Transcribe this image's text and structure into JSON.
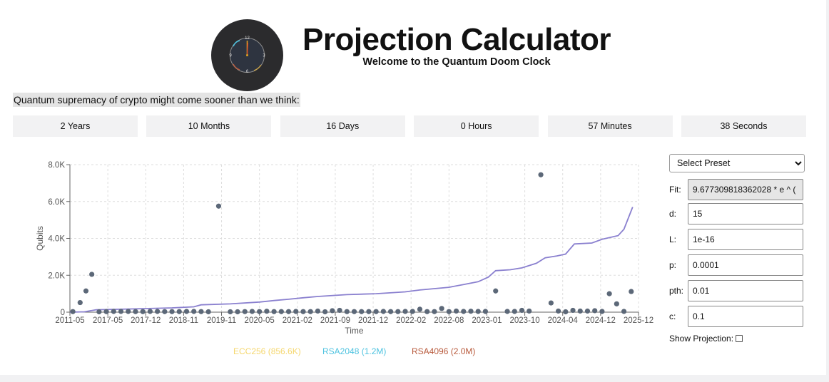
{
  "header": {
    "title": "Projection Calculator",
    "subtitle": "Welcome to the Quantum Doom Clock",
    "tagline": "Quantum supremacy of crypto might come sooner than we think:"
  },
  "clock_face": {
    "n12": "12",
    "n3": "3",
    "n6": "6",
    "n9": "9"
  },
  "countdown": [
    {
      "label": "2 Years"
    },
    {
      "label": "10 Months"
    },
    {
      "label": "16 Days"
    },
    {
      "label": "0 Hours"
    },
    {
      "label": "57 Minutes"
    },
    {
      "label": "38 Seconds"
    }
  ],
  "controls": {
    "preset_label": "Select Preset",
    "fit_label": "Fit:",
    "fit_value": "9.677309818362028 * e ^ (",
    "d_label": "d:",
    "d_value": "15",
    "L_label": "L:",
    "L_value": "1e-16",
    "p_label": "p:",
    "p_value": "0.0001",
    "pth_label": "pth:",
    "pth_value": "0.01",
    "c_label": "c:",
    "c_value": "0.1",
    "show_projection_label": "Show Projection:"
  },
  "chart_data": {
    "type": "scatter",
    "xlabel": "Time",
    "ylabel": "Qubits",
    "x_tick_labels": [
      "2011-05",
      "2017-05",
      "2017-12",
      "2018-11",
      "2019-11",
      "2020-05",
      "2021-02",
      "2021-09",
      "2021-12",
      "2022-02",
      "2022-08",
      "2023-01",
      "2023-10",
      "2024-04",
      "2024-12",
      "2025-12"
    ],
    "y_tick_labels": [
      "0",
      "2.0K",
      "4.0K",
      "6.0K",
      "8.0K"
    ],
    "ylim": [
      0,
      8000
    ],
    "grid": true,
    "legend": [
      {
        "name": "ECC256 (856.6K)",
        "color": "#f5d76e"
      },
      {
        "name": "RSA2048 (1.2M)",
        "color": "#4fc3e0"
      },
      {
        "name": "RSA4096 (2.0M)",
        "color": "#b85a3c"
      }
    ],
    "points_color": "#5c6878",
    "trend_color": "#8a80cf",
    "points": [
      {
        "x": 0.2,
        "y": 30
      },
      {
        "x": 0.7,
        "y": 520
      },
      {
        "x": 1.1,
        "y": 1150
      },
      {
        "x": 1.5,
        "y": 2050
      },
      {
        "x": 2.0,
        "y": 20
      },
      {
        "x": 2.5,
        "y": 30
      },
      {
        "x": 3.0,
        "y": 40
      },
      {
        "x": 3.5,
        "y": 40
      },
      {
        "x": 4.0,
        "y": 40
      },
      {
        "x": 4.5,
        "y": 30
      },
      {
        "x": 5.0,
        "y": 30
      },
      {
        "x": 5.5,
        "y": 40
      },
      {
        "x": 6.0,
        "y": 40
      },
      {
        "x": 6.5,
        "y": 30
      },
      {
        "x": 7.0,
        "y": 30
      },
      {
        "x": 7.5,
        "y": 30
      },
      {
        "x": 8.0,
        "y": 40
      },
      {
        "x": 8.5,
        "y": 40
      },
      {
        "x": 9.0,
        "y": 30
      },
      {
        "x": 9.5,
        "y": 20
      },
      {
        "x": 10.2,
        "y": 5750
      },
      {
        "x": 11.0,
        "y": 20
      },
      {
        "x": 11.5,
        "y": 20
      },
      {
        "x": 12.0,
        "y": 30
      },
      {
        "x": 12.5,
        "y": 40
      },
      {
        "x": 13.0,
        "y": 30
      },
      {
        "x": 13.5,
        "y": 50
      },
      {
        "x": 14.0,
        "y": 30
      },
      {
        "x": 14.5,
        "y": 30
      },
      {
        "x": 15.0,
        "y": 30
      },
      {
        "x": 15.5,
        "y": 40
      },
      {
        "x": 16.0,
        "y": 30
      },
      {
        "x": 16.5,
        "y": 30
      },
      {
        "x": 17.0,
        "y": 60
      },
      {
        "x": 17.5,
        "y": 20
      },
      {
        "x": 18.0,
        "y": 80
      },
      {
        "x": 18.5,
        "y": 100
      },
      {
        "x": 19.0,
        "y": 30
      },
      {
        "x": 19.5,
        "y": 30
      },
      {
        "x": 20.0,
        "y": 30
      },
      {
        "x": 20.5,
        "y": 30
      },
      {
        "x": 21.0,
        "y": 30
      },
      {
        "x": 21.5,
        "y": 40
      },
      {
        "x": 22.0,
        "y": 30
      },
      {
        "x": 22.5,
        "y": 30
      },
      {
        "x": 23.0,
        "y": 40
      },
      {
        "x": 23.5,
        "y": 40
      },
      {
        "x": 24.0,
        "y": 160
      },
      {
        "x": 24.5,
        "y": 30
      },
      {
        "x": 25.0,
        "y": 30
      },
      {
        "x": 25.5,
        "y": 200
      },
      {
        "x": 26.0,
        "y": 30
      },
      {
        "x": 26.5,
        "y": 60
      },
      {
        "x": 27.0,
        "y": 40
      },
      {
        "x": 27.5,
        "y": 50
      },
      {
        "x": 28.0,
        "y": 40
      },
      {
        "x": 28.5,
        "y": 40
      },
      {
        "x": 29.2,
        "y": 1150
      },
      {
        "x": 30.0,
        "y": 40
      },
      {
        "x": 30.5,
        "y": 40
      },
      {
        "x": 31.0,
        "y": 100
      },
      {
        "x": 31.5,
        "y": 60
      },
      {
        "x": 32.3,
        "y": 7450
      },
      {
        "x": 33.0,
        "y": 500
      },
      {
        "x": 33.5,
        "y": 60
      },
      {
        "x": 34.0,
        "y": 20
      },
      {
        "x": 34.5,
        "y": 100
      },
      {
        "x": 35.0,
        "y": 60
      },
      {
        "x": 35.5,
        "y": 60
      },
      {
        "x": 36.0,
        "y": 80
      },
      {
        "x": 36.5,
        "y": 40
      },
      {
        "x": 37.0,
        "y": 1000
      },
      {
        "x": 37.5,
        "y": 450
      },
      {
        "x": 38.0,
        "y": 40
      },
      {
        "x": 38.5,
        "y": 1120
      }
    ],
    "trend": [
      [
        0,
        0
      ],
      [
        1,
        20
      ],
      [
        1.8,
        130
      ],
      [
        4,
        170
      ],
      [
        7,
        230
      ],
      [
        8.5,
        290
      ],
      [
        9,
        400
      ],
      [
        11,
        450
      ],
      [
        13,
        550
      ],
      [
        14,
        630
      ],
      [
        15,
        700
      ],
      [
        16,
        780
      ],
      [
        17,
        850
      ],
      [
        19,
        950
      ],
      [
        21,
        1000
      ],
      [
        23,
        1100
      ],
      [
        24,
        1200
      ],
      [
        26,
        1350
      ],
      [
        27,
        1500
      ],
      [
        28,
        1650
      ],
      [
        28.7,
        1900
      ],
      [
        29.2,
        2250
      ],
      [
        30.2,
        2300
      ],
      [
        31,
        2400
      ],
      [
        32,
        2650
      ],
      [
        32.6,
        2950
      ],
      [
        33.4,
        3050
      ],
      [
        34,
        3150
      ],
      [
        34.6,
        3700
      ],
      [
        35.8,
        3750
      ],
      [
        36.5,
        3950
      ],
      [
        37.6,
        4150
      ],
      [
        38,
        4500
      ],
      [
        38.6,
        5700
      ]
    ]
  }
}
